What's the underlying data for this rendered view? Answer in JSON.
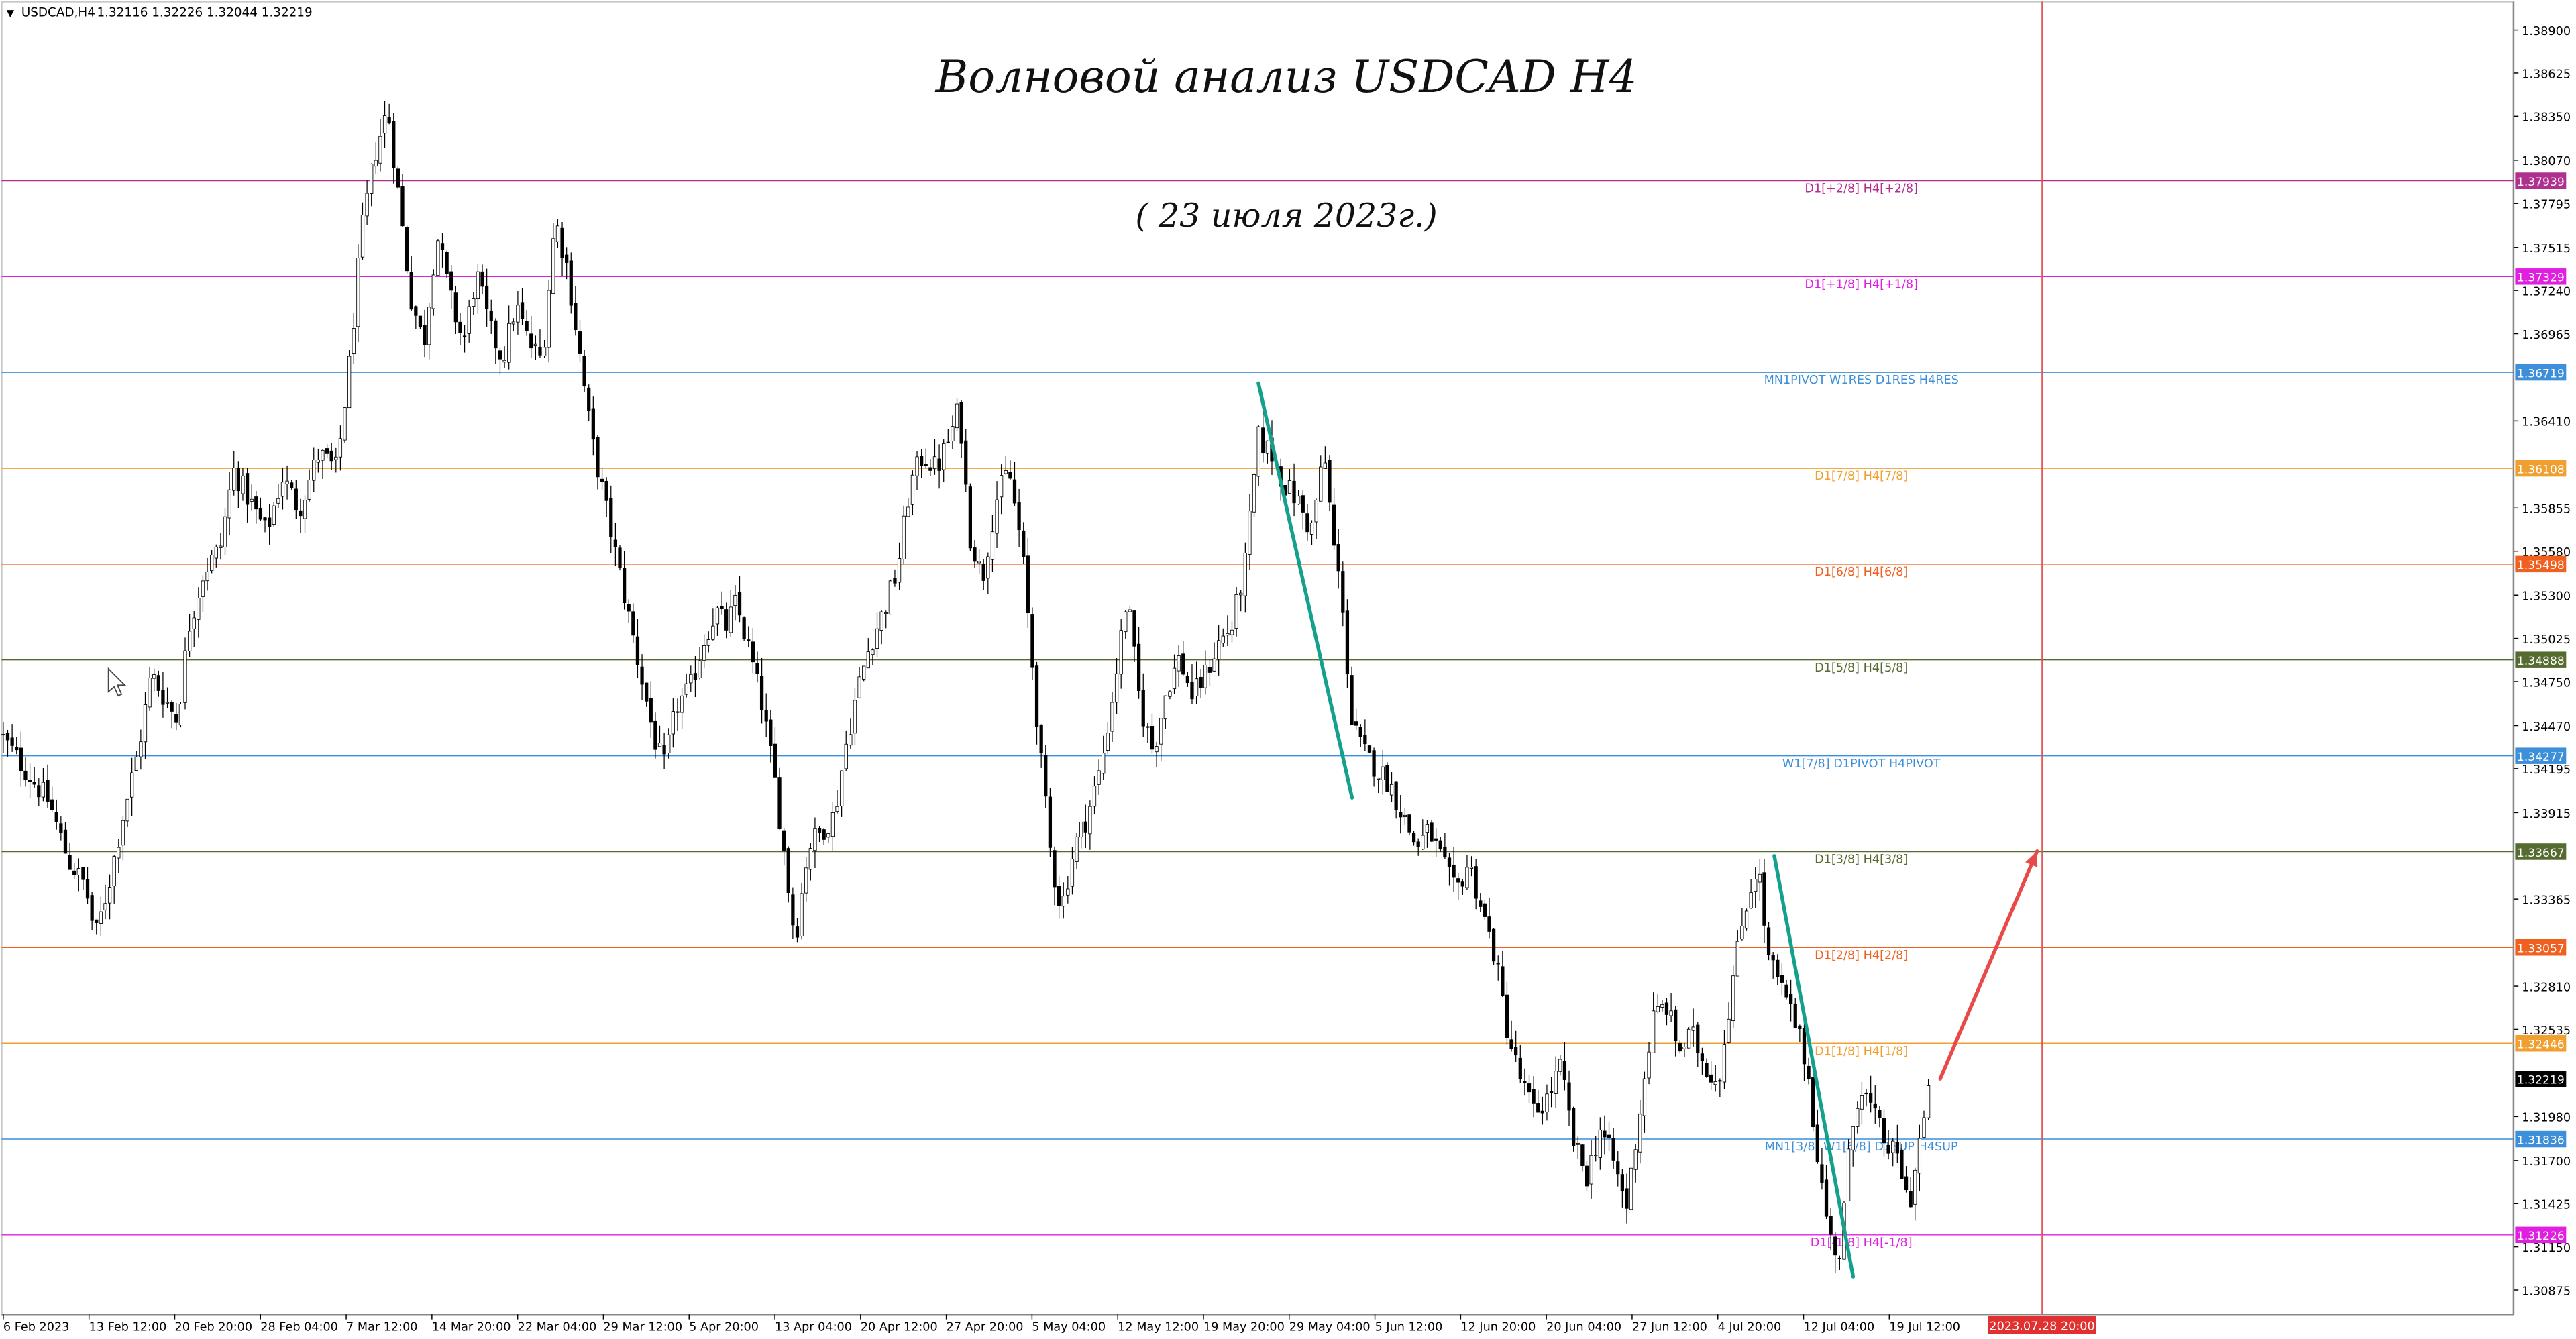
{
  "symbol_header": {
    "symbol": "USDCAD,H4",
    "ohlc": "1.32116 1.32226 1.32044 1.32219"
  },
  "annotations": {
    "title": "Волновой анализ USDCAD H4",
    "subtitle": "( 23 июля 2023г.)"
  },
  "colors": {
    "candle": "#000000",
    "wave_line": "#13a18e",
    "forecast_arrow": "#e84a4a",
    "vertical_marker": "#e05050",
    "current_price_bg": "#000000"
  },
  "chart_data": {
    "type": "candlestick",
    "instrument": "USDCAD",
    "timeframe": "H4",
    "ylim": [
      1.3072,
      1.3908
    ],
    "grid": false,
    "price_axis_ticks": [
      "1.38900",
      "1.38625",
      "1.38350",
      "1.38070",
      "1.37795",
      "1.37515",
      "1.37240",
      "1.36965",
      "1.36410",
      "1.35855",
      "1.35580",
      "1.35300",
      "1.35025",
      "1.34750",
      "1.34470",
      "1.34195",
      "1.33915",
      "1.33365",
      "1.32810",
      "1.32535",
      "1.31980",
      "1.31700",
      "1.31425",
      "1.31150",
      "1.30875"
    ],
    "time_axis_labels": [
      "6 Feb 2023",
      "13 Feb 12:00",
      "20 Feb 20:00",
      "28 Feb 04:00",
      "7 Mar 12:00",
      "14 Mar 20:00",
      "22 Mar 04:00",
      "29 Mar 12:00",
      "5 Apr 20:00",
      "13 Apr 04:00",
      "20 Apr 12:00",
      "27 Apr 20:00",
      "5 May 04:00",
      "12 May 12:00",
      "19 May 20:00",
      "29 May 04:00",
      "5 Jun 12:00",
      "12 Jun 20:00",
      "20 Jun 04:00",
      "27 Jun 12:00",
      "4 Jul 20:00",
      "12 Jul 04:00",
      "19 Jul 12:00"
    ],
    "future_time_label": "2023.07.28 20:00",
    "levels": [
      {
        "label": "D1[+2/8] H4[+2/8]",
        "price": 1.37939,
        "value_text": "1.37939",
        "color": "#b03090"
      },
      {
        "label": "D1[+1/8] H4[+1/8]",
        "price": 1.37329,
        "value_text": "1.37329",
        "color": "#e020e0"
      },
      {
        "label": "MN1PIVOT W1RES D1RES H4RES",
        "price": 1.36719,
        "value_text": "1.36719",
        "color": "#3c8fd8"
      },
      {
        "label": "D1[7/8] H4[7/8]",
        "price": 1.36108,
        "value_text": "1.36108",
        "color": "#f0a030"
      },
      {
        "label": "D1[6/8] H4[6/8]",
        "price": 1.35498,
        "value_text": "1.35498",
        "color": "#f06020"
      },
      {
        "label": "D1[5/8] H4[5/8]",
        "price": 1.34888,
        "value_text": "1.34888",
        "color": "#556b2f"
      },
      {
        "label": "W1[7/8] D1PIVOT H4PIVOT",
        "price": 1.34277,
        "value_text": "1.34277",
        "color": "#3c8fd8"
      },
      {
        "label": "D1[3/8] H4[3/8]",
        "price": 1.33667,
        "value_text": "1.33667",
        "color": "#556b2f"
      },
      {
        "label": "D1[2/8] H4[2/8]",
        "price": 1.33057,
        "value_text": "1.33057",
        "color": "#f06020"
      },
      {
        "label": "D1[1/8] H4[1/8]",
        "price": 1.32446,
        "value_text": "1.32446",
        "color": "#f0a030"
      },
      {
        "label": "MN1[3/8] W1[6/8] D1SUP H4SUP",
        "price": 1.31836,
        "value_text": "1.31836",
        "color": "#3c8fd8"
      },
      {
        "label": "D1[-1/8] H4[-1/8]",
        "price": 1.31226,
        "value_text": "1.31226",
        "color": "#e020e0"
      }
    ],
    "current_price": {
      "price": 1.32219,
      "value_text": "1.32219"
    },
    "close_path": [
      [
        0,
        1.3442
      ],
      [
        18,
        1.3415
      ],
      [
        30,
        1.3398
      ],
      [
        42,
        1.336
      ],
      [
        52,
        1.3345
      ],
      [
        58,
        1.3312
      ],
      [
        66,
        1.3345
      ],
      [
        75,
        1.339
      ],
      [
        84,
        1.343
      ],
      [
        92,
        1.348
      ],
      [
        100,
        1.3465
      ],
      [
        108,
        1.345
      ],
      [
        115,
        1.351
      ],
      [
        124,
        1.3545
      ],
      [
        134,
        1.356
      ],
      [
        142,
        1.361
      ],
      [
        152,
        1.359
      ],
      [
        162,
        1.357
      ],
      [
        172,
        1.3605
      ],
      [
        182,
        1.3585
      ],
      [
        194,
        1.362
      ],
      [
        205,
        1.361
      ],
      [
        213,
        1.368
      ],
      [
        220,
        1.376
      ],
      [
        228,
        1.381
      ],
      [
        236,
        1.384
      ],
      [
        242,
        1.379
      ],
      [
        250,
        1.372
      ],
      [
        258,
        1.369
      ],
      [
        266,
        1.376
      ],
      [
        274,
        1.372
      ],
      [
        282,
        1.369
      ],
      [
        290,
        1.3735
      ],
      [
        298,
        1.37
      ],
      [
        306,
        1.368
      ],
      [
        314,
        1.3715
      ],
      [
        322,
        1.369
      ],
      [
        330,
        1.368
      ],
      [
        338,
        1.377
      ],
      [
        345,
        1.374
      ],
      [
        352,
        1.369
      ],
      [
        360,
        1.363
      ],
      [
        370,
        1.358
      ],
      [
        380,
        1.353
      ],
      [
        390,
        1.348
      ],
      [
        398,
        1.344
      ],
      [
        404,
        1.342
      ],
      [
        412,
        1.346
      ],
      [
        420,
        1.347
      ],
      [
        428,
        1.35
      ],
      [
        436,
        1.352
      ],
      [
        442,
        1.351
      ],
      [
        448,
        1.3525
      ],
      [
        456,
        1.3495
      ],
      [
        464,
        1.346
      ],
      [
        472,
        1.341
      ],
      [
        478,
        1.336
      ],
      [
        484,
        1.331
      ],
      [
        492,
        1.337
      ],
      [
        500,
        1.338
      ],
      [
        508,
        1.339
      ],
      [
        514,
        1.343
      ],
      [
        522,
        1.347
      ],
      [
        530,
        1.35
      ],
      [
        538,
        1.352
      ],
      [
        546,
        1.3545
      ],
      [
        554,
        1.36
      ],
      [
        562,
        1.362
      ],
      [
        570,
        1.361
      ],
      [
        578,
        1.363
      ],
      [
        584,
        1.365
      ],
      [
        590,
        1.357
      ],
      [
        598,
        1.354
      ],
      [
        606,
        1.359
      ],
      [
        614,
        1.361
      ],
      [
        622,
        1.356
      ],
      [
        628,
        1.349
      ],
      [
        634,
        1.342
      ],
      [
        640,
        1.336
      ],
      [
        646,
        1.333
      ],
      [
        654,
        1.337
      ],
      [
        662,
        1.339
      ],
      [
        670,
        1.342
      ],
      [
        678,
        1.347
      ],
      [
        686,
        1.353
      ],
      [
        694,
        1.346
      ],
      [
        702,
        1.343
      ],
      [
        710,
        1.347
      ],
      [
        718,
        1.349
      ],
      [
        726,
        1.3465
      ],
      [
        734,
        1.348
      ],
      [
        742,
        1.35
      ],
      [
        750,
        1.351
      ],
      [
        758,
        1.355
      ],
      [
        766,
        1.363
      ],
      [
        774,
        1.362
      ],
      [
        782,
        1.36
      ],
      [
        790,
        1.359
      ],
      [
        798,
        1.357
      ],
      [
        806,
        1.362
      ],
      [
        812,
        1.356
      ],
      [
        818,
        1.352
      ],
      [
        822,
        1.345
      ],
      [
        830,
        1.343
      ],
      [
        838,
        1.342
      ],
      [
        846,
        1.341
      ],
      [
        854,
        1.339
      ],
      [
        862,
        1.337
      ],
      [
        870,
        1.338
      ],
      [
        878,
        1.336
      ],
      [
        886,
        1.334
      ],
      [
        894,
        1.336
      ],
      [
        902,
        1.333
      ],
      [
        910,
        1.33
      ],
      [
        918,
        1.325
      ],
      [
        926,
        1.322
      ],
      [
        934,
        1.32
      ],
      [
        942,
        1.321
      ],
      [
        950,
        1.323
      ],
      [
        958,
        1.318
      ],
      [
        966,
        1.316
      ],
      [
        974,
        1.319
      ],
      [
        982,
        1.317
      ],
      [
        990,
        1.314
      ],
      [
        998,
        1.32
      ],
      [
        1006,
        1.326
      ],
      [
        1014,
        1.327
      ],
      [
        1022,
        1.324
      ],
      [
        1030,
        1.325
      ],
      [
        1038,
        1.323
      ],
      [
        1046,
        1.322
      ],
      [
        1054,
        1.328
      ],
      [
        1062,
        1.333
      ],
      [
        1070,
        1.336
      ],
      [
        1076,
        1.33
      ],
      [
        1084,
        1.328
      ],
      [
        1092,
        1.326
      ],
      [
        1100,
        1.323
      ],
      [
        1108,
        1.316
      ],
      [
        1114,
        1.312
      ],
      [
        1120,
        1.311
      ],
      [
        1126,
        1.318
      ],
      [
        1132,
        1.322
      ],
      [
        1140,
        1.32
      ],
      [
        1148,
        1.318
      ],
      [
        1156,
        1.317
      ],
      [
        1162,
        1.314
      ],
      [
        1168,
        1.318
      ],
      [
        1176,
        1.3222
      ]
    ],
    "wave_lines": [
      {
        "x0": 766,
        "y0": 1.3665,
        "x1": 823,
        "y1": 1.3401
      },
      {
        "x0": 1080,
        "y0": 1.3364,
        "x1": 1128,
        "y1": 1.3096
      }
    ],
    "forecast_arrow": {
      "x0": 1181,
      "y0": 1.3222,
      "x1": 1240,
      "y1": 1.3367
    },
    "future_marker_x": 1243
  }
}
